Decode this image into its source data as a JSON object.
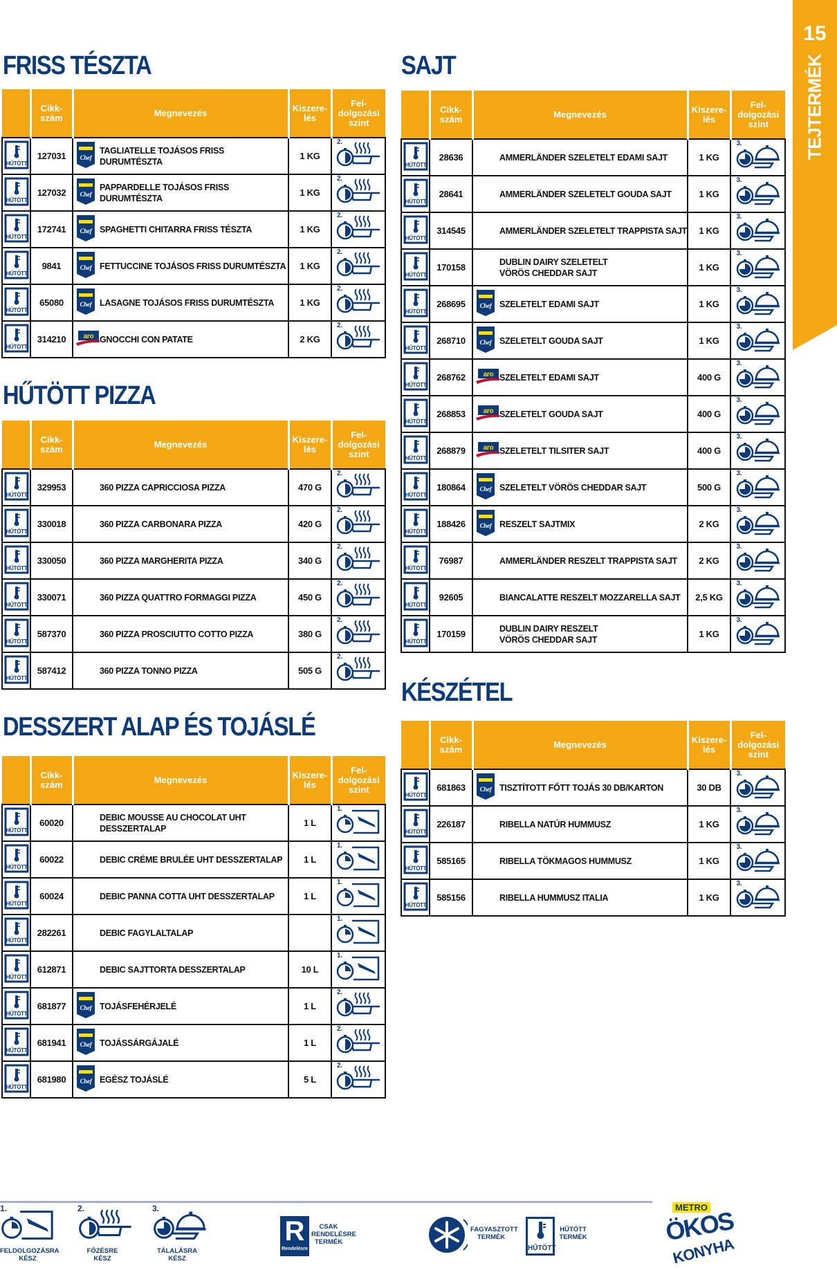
{
  "page": {
    "number": "15",
    "category": "TEJTERMÉK"
  },
  "colors": {
    "accent": "#f3a712",
    "navy": "#0d3a78",
    "aro_red": "#c8102e",
    "metro_yellow": "#ffe000"
  },
  "headers": {
    "cikk": "Cikk-\nszám",
    "name": "Megnevezés",
    "size": "Kiszere-\nlés",
    "level": "Fel-\ndolgozási\nszint"
  },
  "storage_icon": {
    "name": "hutott-icon",
    "label": "HŰTÖTT"
  },
  "sections": {
    "friss_teszta": {
      "title": "FRISS TÉSZTA",
      "rows": [
        {
          "cikk": "127031",
          "brand": "metro-chef",
          "name": "TAGLIATELLE TOJÁSOS FRISS DURUMTÉSZTA",
          "size": "1 KG",
          "level": "2."
        },
        {
          "cikk": "127032",
          "brand": "metro-chef",
          "name": "PAPPARDELLE TOJÁSOS FRISS DURUMTÉSZTA",
          "size": "1 KG",
          "level": "2."
        },
        {
          "cikk": "172741",
          "brand": "metro-chef",
          "name": "SPAGHETTI CHITARRA FRISS TÉSZTA",
          "size": "1 KG",
          "level": "2."
        },
        {
          "cikk": "9841",
          "brand": "metro-chef",
          "name": "FETTUCCINE TOJÁSOS FRISS DURUMTÉSZTA",
          "size": "1 KG",
          "level": "2."
        },
        {
          "cikk": "65080",
          "brand": "metro-chef",
          "name": "LASAGNE TOJÁSOS FRISS DURUMTÉSZTA",
          "size": "1 KG",
          "level": "2."
        },
        {
          "cikk": "314210",
          "brand": "aro",
          "name": "GNOCCHI CON PATATE",
          "size": "2 KG",
          "level": "2."
        }
      ]
    },
    "hutott_pizza": {
      "title": "HŰTÖTT PIZZA",
      "rows": [
        {
          "cikk": "329953",
          "brand": "",
          "name": "360 PIZZA CAPRICCIOSA PIZZA",
          "size": "470 G",
          "level": "2."
        },
        {
          "cikk": "330018",
          "brand": "",
          "name": "360 PIZZA CARBONARA PIZZA",
          "size": "420 G",
          "level": "2."
        },
        {
          "cikk": "330050",
          "brand": "",
          "name": "360 PIZZA MARGHERITA PIZZA",
          "size": "340 G",
          "level": "2."
        },
        {
          "cikk": "330071",
          "brand": "",
          "name": "360 PIZZA QUATTRO FORMAGGI PIZZA",
          "size": "450 G",
          "level": "2."
        },
        {
          "cikk": "587370",
          "brand": "",
          "name": "360 PIZZA PROSCIUTTO COTTO PIZZA",
          "size": "380 G",
          "level": "2."
        },
        {
          "cikk": "587412",
          "brand": "",
          "name": "360 PIZZA TONNO PIZZA",
          "size": "505 G",
          "level": "2."
        }
      ]
    },
    "desszert": {
      "title": "DESSZERT ALAP ÉS TOJÁSLÉ",
      "rows": [
        {
          "cikk": "60020",
          "brand": "",
          "name": "DEBIC MOUSSE AU CHOCOLAT UHT\nDESSZERTALAP",
          "size": "1 L",
          "level": "1."
        },
        {
          "cikk": "60022",
          "brand": "",
          "name": "DEBIC CRÉME BRULÉE UHT DESSZERTALAP",
          "size": "1 L",
          "level": "1."
        },
        {
          "cikk": "60024",
          "brand": "",
          "name": "DEBIC PANNA COTTA UHT DESSZERTALAP",
          "size": "1 L",
          "level": "1."
        },
        {
          "cikk": "282261",
          "brand": "",
          "name": "DEBIC FAGYLALTALAP",
          "size": "",
          "level": "1."
        },
        {
          "cikk": "612871",
          "brand": "",
          "name": "DEBIC SAJTTORTA DESSZERTALAP",
          "size": "10 L",
          "level": "1."
        },
        {
          "cikk": "681877",
          "brand": "metro-chef",
          "name": "TOJÁSFEHÉRJELÉ",
          "size": "1 L",
          "level": "2."
        },
        {
          "cikk": "681941",
          "brand": "metro-chef",
          "name": "TOJÁSSÁRGÁJALÉ",
          "size": "1 L",
          "level": "2."
        },
        {
          "cikk": "681980",
          "brand": "metro-chef",
          "name": "EGÉSZ TOJÁSLÉ",
          "size": "5 L",
          "level": "2."
        }
      ]
    },
    "sajt": {
      "title": "SAJT",
      "rows": [
        {
          "cikk": "28636",
          "brand": "",
          "name": "AMMERLÄNDER SZELETELT EDAMI SAJT",
          "size": "1 KG",
          "level": "3."
        },
        {
          "cikk": "28641",
          "brand": "",
          "name": "AMMERLÄNDER SZELETELT GOUDA SAJT",
          "size": "1 KG",
          "level": "3."
        },
        {
          "cikk": "314545",
          "brand": "",
          "name": "AMMERLÄNDER SZELETELT TRAPPISTA SAJT",
          "size": "1 KG",
          "level": "3."
        },
        {
          "cikk": "170158",
          "brand": "",
          "name": "DUBLIN DAIRY SZELETELT\nVÖRÖS CHEDDAR SAJT",
          "size": "1 KG",
          "level": "3."
        },
        {
          "cikk": "268695",
          "brand": "metro-chef",
          "name": "SZELETELT EDAMI SAJT",
          "size": "1 KG",
          "level": "3."
        },
        {
          "cikk": "268710",
          "brand": "metro-chef",
          "name": "SZELETELT GOUDA SAJT",
          "size": "1 KG",
          "level": "3."
        },
        {
          "cikk": "268762",
          "brand": "aro",
          "name": "SZELETELT EDAMI SAJT",
          "size": "400 G",
          "level": "3."
        },
        {
          "cikk": "268853",
          "brand": "aro",
          "name": "SZELETELT GOUDA SAJT",
          "size": "400 G",
          "level": "3."
        },
        {
          "cikk": "268879",
          "brand": "aro",
          "name": "SZELETELT TILSITER SAJT",
          "size": "400 G",
          "level": "3."
        },
        {
          "cikk": "180864",
          "brand": "metro-chef",
          "name": "SZELETELT VÖRÖS CHEDDAR SAJT",
          "size": "500 G",
          "level": "3."
        },
        {
          "cikk": "188426",
          "brand": "metro-chef",
          "name": "RESZELT SAJTMIX",
          "size": "2 KG",
          "level": "3."
        },
        {
          "cikk": "76987",
          "brand": "",
          "name": "AMMERLÄNDER RESZELT TRAPPISTA SAJT",
          "size": "2 KG",
          "level": "3."
        },
        {
          "cikk": "92605",
          "brand": "",
          "name": "BIANCALATTE RESZELT MOZZARELLA SAJT",
          "size": "2,5 KG",
          "level": "3."
        },
        {
          "cikk": "170159",
          "brand": "",
          "name": "DUBLIN DAIRY RESZELT\nVÖRÖS CHEDDAR SAJT",
          "size": "1 KG",
          "level": "3."
        }
      ]
    },
    "keszetel": {
      "title": "KÉSZÉTEL",
      "rows": [
        {
          "cikk": "681863",
          "brand": "metro-chef",
          "name": "TISZTÍTOTT FŐTT TOJÁS 30 DB/KARTON",
          "size": "30 DB",
          "level": "3."
        },
        {
          "cikk": "226187",
          "brand": "",
          "name": "RIBELLA NATÚR HUMMUSZ",
          "size": "1 KG",
          "level": "3."
        },
        {
          "cikk": "585165",
          "brand": "",
          "name": "RIBELLA TÖKMAGOS HUMMUSZ",
          "size": "1 KG",
          "level": "3."
        },
        {
          "cikk": "585156",
          "brand": "",
          "name": "RIBELLA HUMMUSZ ITALIA",
          "size": "1 KG",
          "level": "3."
        }
      ]
    }
  },
  "legend": {
    "l1": {
      "num": "1.",
      "label": "FELDOLGOZÁSRA\nKÉSZ"
    },
    "l2": {
      "num": "2.",
      "label": "FŐZÉSRE\nKÉSZ"
    },
    "l3": {
      "num": "3.",
      "label": "TÁLALÁSRA\nKÉSZ"
    },
    "rendeles": {
      "logo_text": "Rendelésre",
      "label": "CSAK\nRENDELÉSRE\nTERMÉK"
    },
    "fagyasztott": {
      "label": "FAGYASZTOTT\nTERMÉK"
    },
    "hutott": {
      "icon_text": "HŰTÖTT",
      "label": "HŰTÖTT\nTERMÉK"
    }
  },
  "logo": {
    "brand": "METRO",
    "line1": "ÖKOS",
    "line2": "KONYHA"
  }
}
